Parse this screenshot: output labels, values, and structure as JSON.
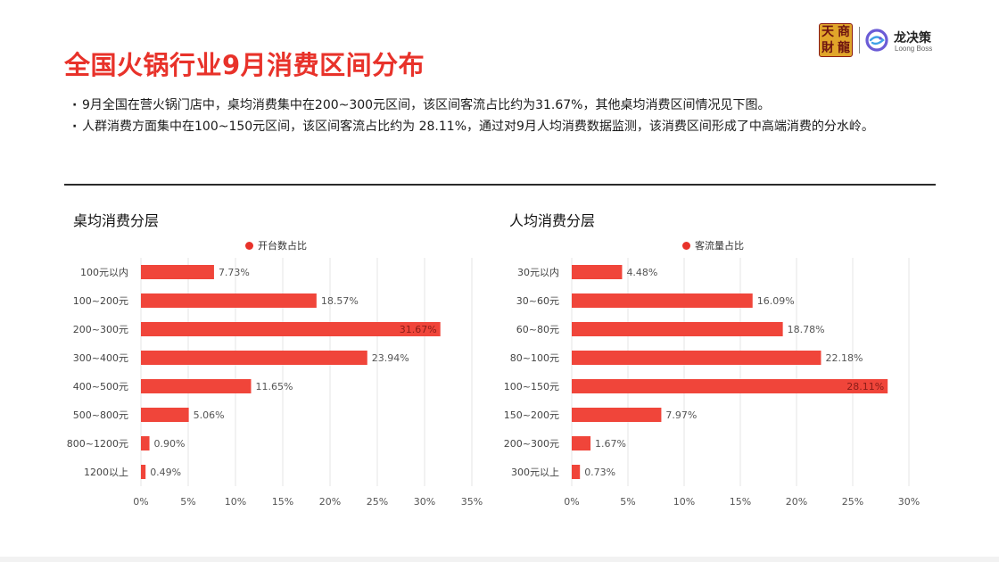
{
  "header": {
    "title": "全国火锅行业9月消费区间分布",
    "seal_chars": [
      "天",
      "商",
      "財",
      "龍"
    ],
    "brand_name": "龙决策",
    "brand_sub": "Loong Boss"
  },
  "bullets": [
    "9月全国在营火锅门店中，桌均消费集中在200~300元区间，该区间客流占比约为31.67%，其他桌均消费区间情况见下图。",
    "人群消费方面集中在100~150元区间，该区间客流占比约为 28.11%，通过对9月人均消费数据监测，该消费区间形成了中高端消费的分水岭。"
  ],
  "colors": {
    "accent": "#e8322a",
    "bar": "#f0453a",
    "grid": "#e6e6e6"
  },
  "chart_data": [
    {
      "type": "bar",
      "orientation": "horizontal",
      "title": "桌均消费分层",
      "legend": "开台数占比",
      "legend_placement": "top",
      "categories": [
        "100元以内",
        "100~200元",
        "200~300元",
        "300~400元",
        "400~500元",
        "500~800元",
        "800~1200元",
        "1200以上"
      ],
      "values": [
        7.73,
        18.57,
        31.67,
        23.94,
        11.65,
        5.06,
        0.9,
        0.49
      ],
      "value_labels": [
        "7.73%",
        "18.57%",
        "31.67%",
        "23.94%",
        "11.65%",
        "5.06%",
        "0.90%",
        "0.49%"
      ],
      "xlim": [
        0,
        35
      ],
      "x_ticks": [
        "0%",
        "5%",
        "10%",
        "15%",
        "20%",
        "25%",
        "30%",
        "35%"
      ],
      "grid": true
    },
    {
      "type": "bar",
      "orientation": "horizontal",
      "title": "人均消费分层",
      "legend": "客流量占比",
      "legend_placement": "top",
      "categories": [
        "30元以内",
        "30~60元",
        "60~80元",
        "80~100元",
        "100~150元",
        "150~200元",
        "200~300元",
        "300元以上"
      ],
      "values": [
        4.48,
        16.09,
        18.78,
        22.18,
        28.11,
        7.97,
        1.67,
        0.73
      ],
      "value_labels": [
        "4.48%",
        "16.09%",
        "18.78%",
        "22.18%",
        "28.11%",
        "7.97%",
        "1.67%",
        "0.73%"
      ],
      "xlim": [
        0,
        30
      ],
      "x_ticks": [
        "0%",
        "5%",
        "10%",
        "15%",
        "20%",
        "25%",
        "30%"
      ],
      "grid": true
    }
  ]
}
